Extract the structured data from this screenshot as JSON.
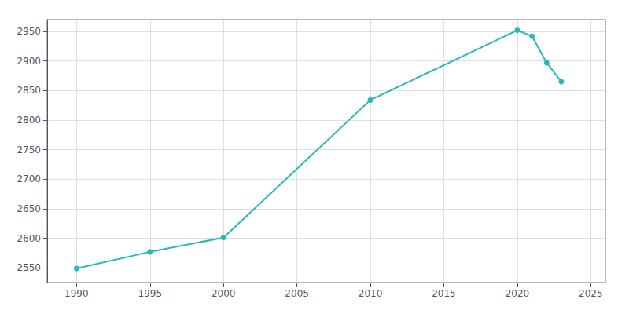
{
  "chart_data": {
    "type": "line",
    "x": [
      1990,
      1995,
      2000,
      2010,
      2020,
      2021,
      2022,
      2023
    ],
    "values": [
      2549,
      2577,
      2601,
      2834,
      2952,
      2942,
      2897,
      2865
    ],
    "color": "#29b8b8",
    "marker": "circle",
    "xlim": [
      1988,
      2026
    ],
    "xticks": [
      1990,
      1995,
      2000,
      2005,
      2010,
      2015,
      2020,
      2025
    ],
    "ylim": [
      2525,
      2970
    ],
    "yticks": [
      2550,
      2600,
      2650,
      2700,
      2750,
      2800,
      2850,
      2900,
      2950
    ],
    "grid": true
  }
}
